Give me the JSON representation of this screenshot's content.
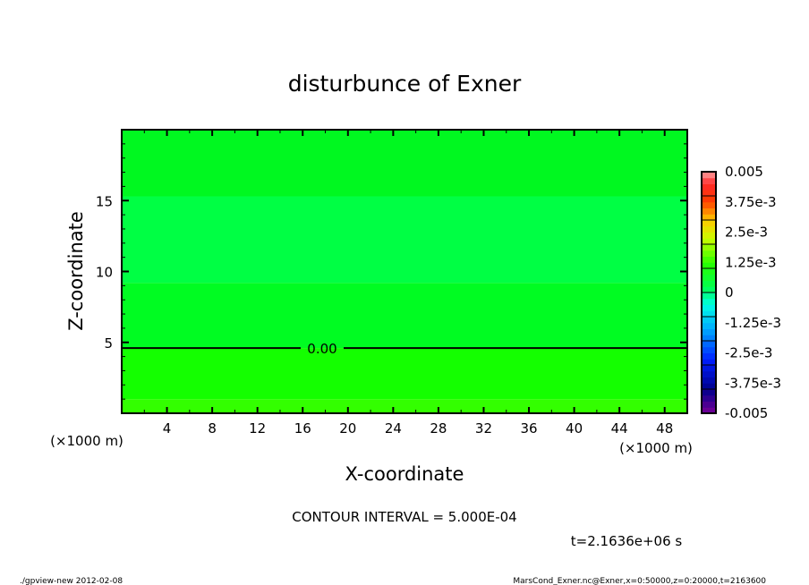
{
  "chart_data": {
    "type": "heatmap",
    "title": "disturbunce of Exner",
    "xlabel": "X-coordinate",
    "ylabel": "Z-coordinate",
    "x_unit": "(×1000 m)",
    "y_unit": "(×1000 m)",
    "xlim": [
      0,
      50
    ],
    "ylim": [
      0,
      20
    ],
    "x_ticks": [
      4,
      8,
      12,
      16,
      20,
      24,
      28,
      32,
      36,
      40,
      44,
      48
    ],
    "y_ticks": [
      5,
      10,
      15
    ],
    "bands": [
      {
        "z_from": 0,
        "z_to": 1.0,
        "color": "#33ff00"
      },
      {
        "z_from": 1.0,
        "z_to": 4.6,
        "color": "#14ff00"
      },
      {
        "z_from": 4.6,
        "z_to": 9.2,
        "color": "#00fc22"
      },
      {
        "z_from": 9.2,
        "z_to": 15.3,
        "color": "#00ff44"
      },
      {
        "z_from": 15.3,
        "z_to": 20,
        "color": "#00f820"
      }
    ],
    "contours": [
      {
        "z": 4.6,
        "label": "0.00"
      }
    ],
    "colorbar": {
      "min": -0.005,
      "max": 0.005,
      "labels": [
        "0.005",
        "3.75e-3",
        "2.5e-3",
        "1.25e-3",
        "0",
        "-1.25e-3",
        "-2.5e-3",
        "-3.75e-3",
        "-0.005"
      ]
    },
    "contour_interval": "CONTOUR INTERVAL = 5.000E-04",
    "time_label": "t=2.1636e+06 s"
  },
  "footer": {
    "left": "./gpview-new   2012-02-08",
    "right": "MarsCond_Exner.nc@Exner,x=0:50000,z=0:20000,t=2163600"
  }
}
